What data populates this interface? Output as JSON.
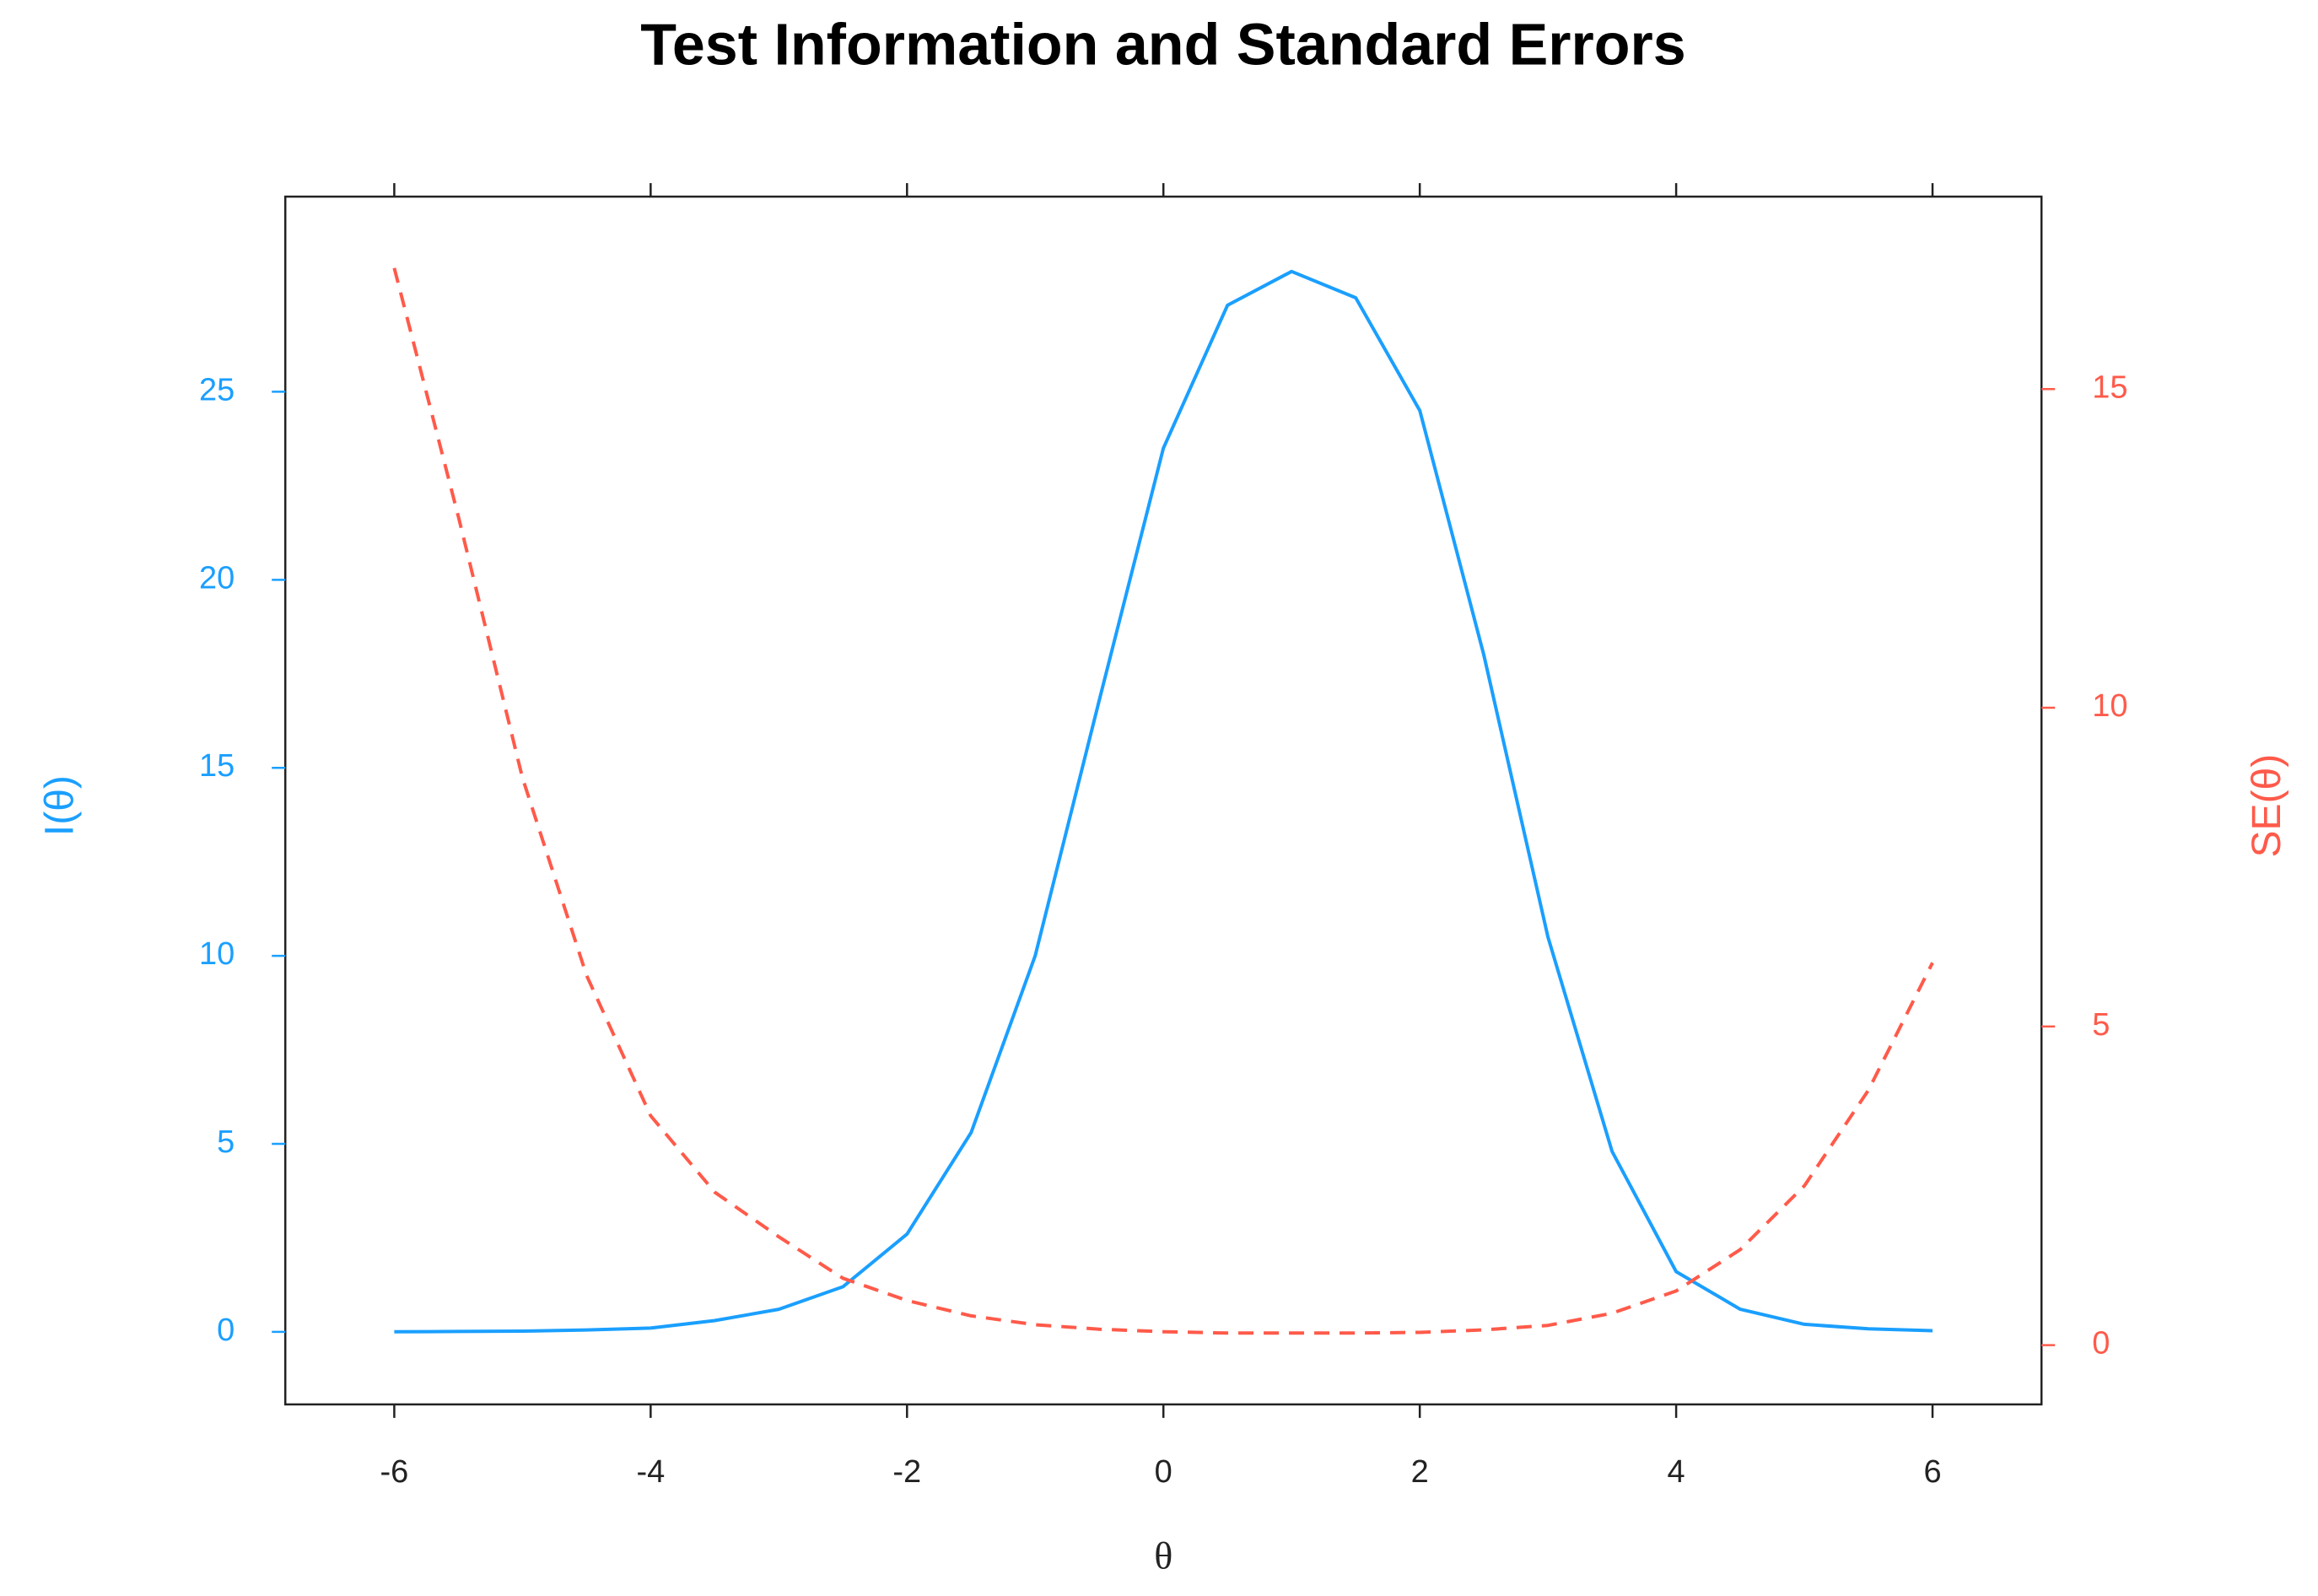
{
  "chart_data": {
    "type": "line",
    "title": "Test Information and Standard Errors",
    "xlabel": "θ",
    "ylabel": "I(θ)",
    "y2label": "SE(θ)",
    "x": [
      -6,
      -5.5,
      -5,
      -4.5,
      -4,
      -3.5,
      -3,
      -2.5,
      -2,
      -1.5,
      -1,
      -0.5,
      0,
      0.5,
      1,
      1.5,
      2,
      2.5,
      3,
      3.5,
      4,
      4.5,
      5,
      5.5,
      6
    ],
    "series": [
      {
        "name": "I(θ)",
        "color": "#1a9fff",
        "axis": "y",
        "dash": false,
        "values": [
          0.0,
          0.01,
          0.02,
          0.05,
          0.1,
          0.3,
          0.6,
          1.2,
          2.6,
          5.3,
          10,
          16.8,
          23.5,
          27.3,
          28.2,
          27.5,
          24.5,
          18,
          10.5,
          4.8,
          1.6,
          0.6,
          0.2,
          0.08,
          0.03
        ]
      },
      {
        "name": "SE(θ)",
        "color": "#ff5a4a",
        "axis": "y2",
        "dash": true,
        "values": [
          16.9,
          13,
          8.9,
          5.8,
          3.6,
          2.4,
          1.7,
          1.05,
          0.7,
          0.46,
          0.32,
          0.25,
          0.21,
          0.19,
          0.19,
          0.19,
          0.2,
          0.24,
          0.31,
          0.5,
          0.85,
          1.5,
          2.5,
          4,
          6
        ]
      }
    ],
    "xlim": [
      -6.85,
      6.85
    ],
    "xticks": [
      -6,
      -4,
      -2,
      0,
      2,
      4,
      6
    ],
    "ylim": [
      -1.93,
      30.19
    ],
    "yticks": [
      0,
      5,
      10,
      15,
      20,
      25
    ],
    "y2lim": [
      -0.93,
      18.02
    ],
    "y2ticks": [
      0,
      5,
      10,
      15
    ]
  }
}
